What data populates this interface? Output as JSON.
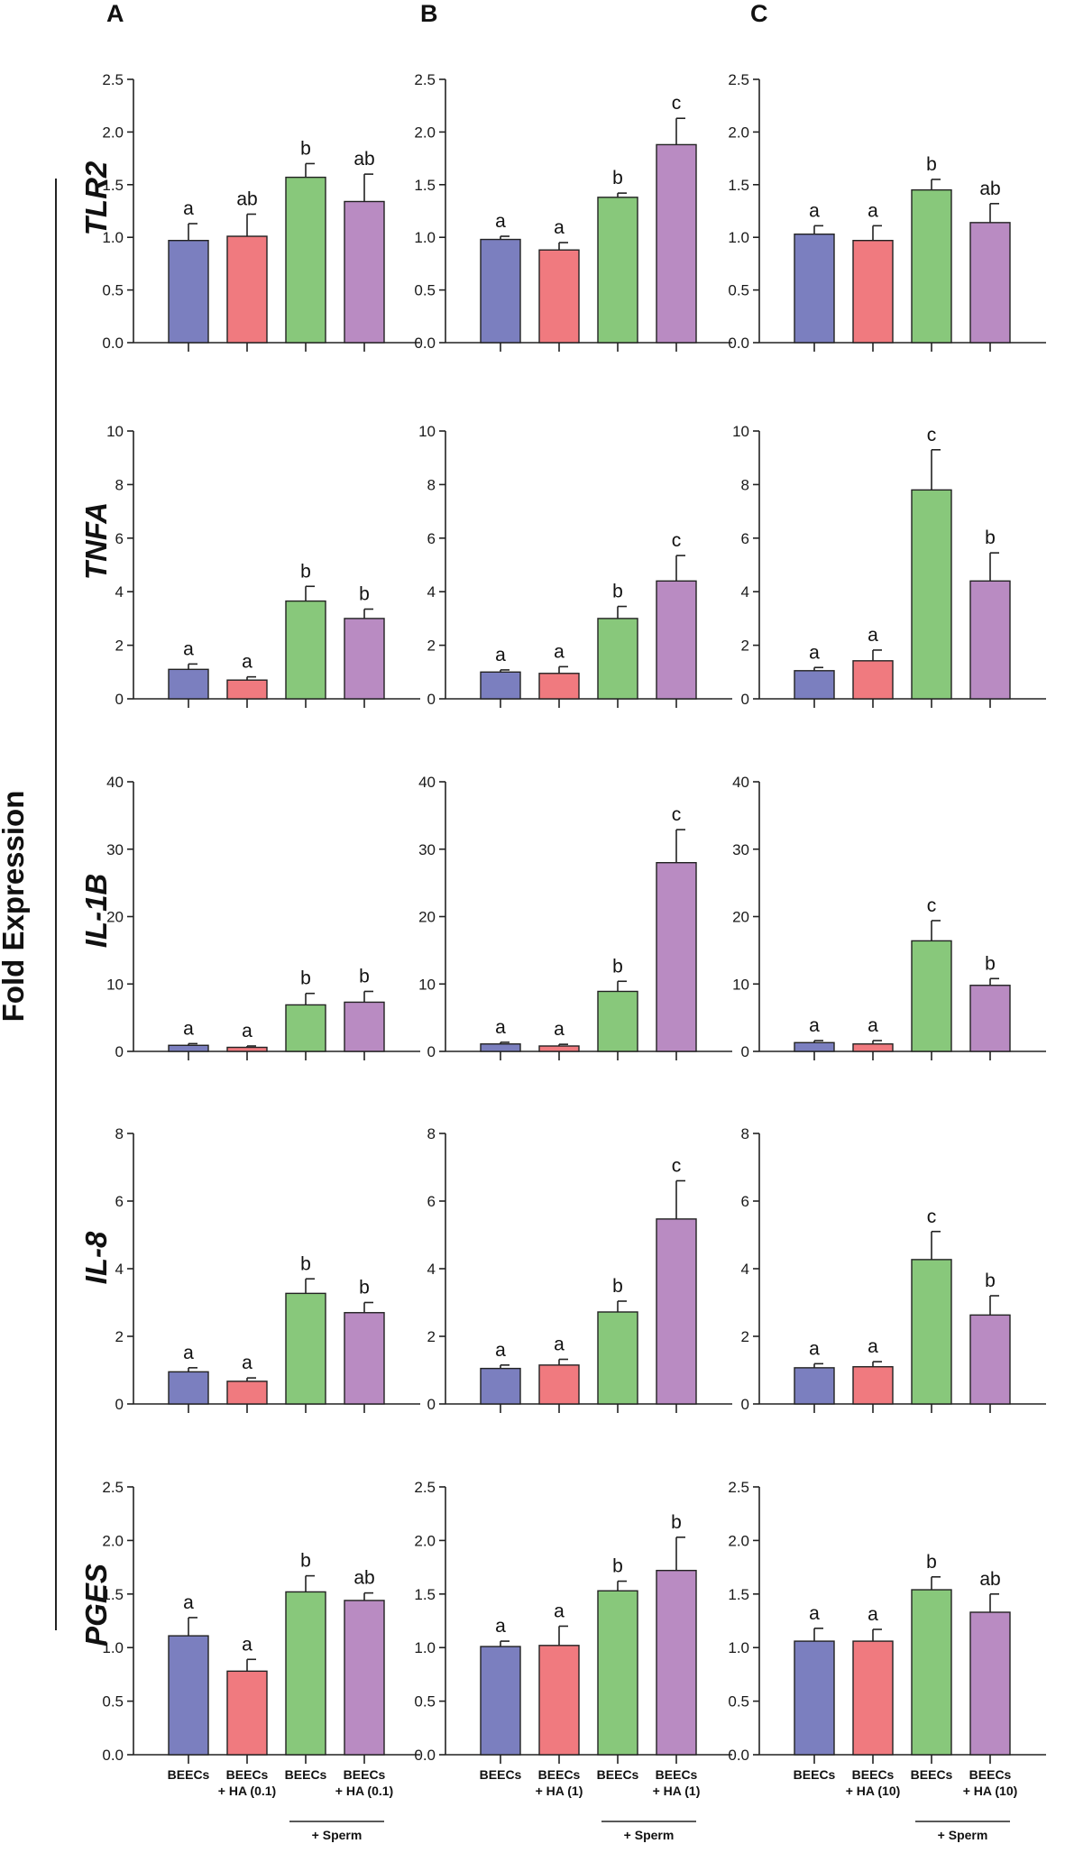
{
  "figure": {
    "y_axis_label": "Fold Expression",
    "panel_labels": [
      "A",
      "B",
      "C"
    ],
    "sperm_label": "+ Sperm",
    "x_label_lines": [
      [
        [
          "BEECs"
        ],
        [
          "BEECs",
          "+ HA (0.1)"
        ],
        [
          "BEECs"
        ],
        [
          "BEECs",
          "+ HA (0.1)"
        ]
      ],
      [
        [
          "BEECs"
        ],
        [
          "BEECs",
          "+ HA (1)"
        ],
        [
          "BEECs"
        ],
        [
          "BEECs",
          "+ HA (1)"
        ]
      ],
      [
        [
          "BEECs"
        ],
        [
          "BEECs",
          "+ HA (10)"
        ],
        [
          "BEECs"
        ],
        [
          "BEECs",
          "+ HA (10)"
        ]
      ]
    ],
    "bar_colors": [
      "#7b7fbf",
      "#f07a7f",
      "#88c87b",
      "#b98bc2"
    ]
  },
  "chart_data": [
    {
      "type": "bar",
      "gene": "TLR2",
      "ylim": [
        0,
        2.5
      ],
      "yticks": [
        "0.0",
        "0.5",
        "1.0",
        "1.5",
        "2.0",
        "2.5"
      ],
      "panels": [
        {
          "panel": "A",
          "categories": [
            "BEECs",
            "BEECs + HA (0.1)",
            "BEECs + Sperm",
            "BEECs + HA (0.1) + Sperm"
          ],
          "values": [
            0.97,
            1.01,
            1.57,
            1.34
          ],
          "errors": [
            0.16,
            0.21,
            0.13,
            0.26
          ],
          "letters": [
            "a",
            "ab",
            "b",
            "ab"
          ]
        },
        {
          "panel": "B",
          "categories": [
            "BEECs",
            "BEECs + HA (1)",
            "BEECs + Sperm",
            "BEECs + HA (1) + Sperm"
          ],
          "values": [
            0.98,
            0.88,
            1.38,
            1.88
          ],
          "errors": [
            0.03,
            0.07,
            0.04,
            0.25
          ],
          "letters": [
            "a",
            "a",
            "b",
            "c"
          ]
        },
        {
          "panel": "C",
          "categories": [
            "BEECs",
            "BEECs + HA (10)",
            "BEECs + Sperm",
            "BEECs + HA (10) + Sperm"
          ],
          "values": [
            1.03,
            0.97,
            1.45,
            1.14
          ],
          "errors": [
            0.08,
            0.14,
            0.1,
            0.18
          ],
          "letters": [
            "a",
            "a",
            "b",
            "ab"
          ]
        }
      ]
    },
    {
      "type": "bar",
      "gene": "TNFA",
      "ylim": [
        0,
        10
      ],
      "yticks": [
        "0",
        "2",
        "4",
        "6",
        "8",
        "10"
      ],
      "panels": [
        {
          "panel": "A",
          "categories": [
            "BEECs",
            "BEECs + HA (0.1)",
            "BEECs + Sperm",
            "BEECs + HA (0.1) + Sperm"
          ],
          "values": [
            1.1,
            0.7,
            3.65,
            3.0
          ],
          "errors": [
            0.2,
            0.12,
            0.55,
            0.35
          ],
          "letters": [
            "a",
            "a",
            "b",
            "b"
          ]
        },
        {
          "panel": "B",
          "categories": [
            "BEECs",
            "BEECs + HA (1)",
            "BEECs + Sperm",
            "BEECs + HA (1) + Sperm"
          ],
          "values": [
            1.0,
            0.95,
            3.0,
            4.4
          ],
          "errors": [
            0.08,
            0.25,
            0.45,
            0.95
          ],
          "letters": [
            "a",
            "a",
            "b",
            "c"
          ]
        },
        {
          "panel": "C",
          "categories": [
            "BEECs",
            "BEECs + HA (10)",
            "BEECs + Sperm",
            "BEECs + HA (10) + Sperm"
          ],
          "values": [
            1.05,
            1.42,
            7.8,
            4.4
          ],
          "errors": [
            0.12,
            0.4,
            1.5,
            1.05
          ],
          "letters": [
            "a",
            "a",
            "c",
            "b"
          ]
        }
      ]
    },
    {
      "type": "bar",
      "gene": "IL-1B",
      "ylim": [
        0,
        40
      ],
      "yticks": [
        "0",
        "10",
        "20",
        "30",
        "40"
      ],
      "panels": [
        {
          "panel": "A",
          "categories": [
            "BEECs",
            "BEECs + HA (0.1)",
            "BEECs + Sperm",
            "BEECs + HA (0.1) + Sperm"
          ],
          "values": [
            0.9,
            0.6,
            6.9,
            7.3
          ],
          "errors": [
            0.25,
            0.2,
            1.7,
            1.6
          ],
          "letters": [
            "a",
            "a",
            "b",
            "b"
          ]
        },
        {
          "panel": "B",
          "categories": [
            "BEECs",
            "BEECs + HA (1)",
            "BEECs + Sperm",
            "BEECs + HA (1) + Sperm"
          ],
          "values": [
            1.1,
            0.8,
            8.9,
            28.0
          ],
          "errors": [
            0.25,
            0.25,
            1.5,
            4.9
          ],
          "letters": [
            "a",
            "a",
            "b",
            "c"
          ]
        },
        {
          "panel": "C",
          "categories": [
            "BEECs",
            "BEECs + HA (10)",
            "BEECs + Sperm",
            "BEECs + HA (10) + Sperm"
          ],
          "values": [
            1.3,
            1.1,
            16.4,
            9.8
          ],
          "errors": [
            0.3,
            0.5,
            3.0,
            1.0
          ],
          "letters": [
            "a",
            "a",
            "c",
            "b"
          ]
        }
      ]
    },
    {
      "type": "bar",
      "gene": "IL-8",
      "ylim": [
        0,
        8
      ],
      "yticks": [
        "0",
        "2",
        "4",
        "6",
        "8"
      ],
      "panels": [
        {
          "panel": "A",
          "categories": [
            "BEECs",
            "BEECs + HA (0.1)",
            "BEECs + Sperm",
            "BEECs + HA (0.1) + Sperm"
          ],
          "values": [
            0.95,
            0.67,
            3.27,
            2.7
          ],
          "errors": [
            0.12,
            0.1,
            0.43,
            0.3
          ],
          "letters": [
            "a",
            "a",
            "b",
            "b"
          ]
        },
        {
          "panel": "B",
          "categories": [
            "BEECs",
            "BEECs + HA (1)",
            "BEECs + Sperm",
            "BEECs + HA (1) + Sperm"
          ],
          "values": [
            1.05,
            1.15,
            2.72,
            5.47
          ],
          "errors": [
            0.1,
            0.17,
            0.32,
            1.13
          ],
          "letters": [
            "a",
            "a",
            "b",
            "c"
          ]
        },
        {
          "panel": "C",
          "categories": [
            "BEECs",
            "BEECs + HA (10)",
            "BEECs + Sperm",
            "BEECs + HA (10) + Sperm"
          ],
          "values": [
            1.07,
            1.1,
            4.27,
            2.63
          ],
          "errors": [
            0.12,
            0.15,
            0.83,
            0.57
          ],
          "letters": [
            "a",
            "a",
            "c",
            "b"
          ]
        }
      ]
    },
    {
      "type": "bar",
      "gene": "PGES",
      "ylim": [
        0,
        2.5
      ],
      "yticks": [
        "0.0",
        "0.5",
        "1.0",
        "1.5",
        "2.0",
        "2.5"
      ],
      "panels": [
        {
          "panel": "A",
          "categories": [
            "BEECs",
            "BEECs + HA (0.1)",
            "BEECs + Sperm",
            "BEECs + HA (0.1) + Sperm"
          ],
          "values": [
            1.11,
            0.78,
            1.52,
            1.44
          ],
          "errors": [
            0.17,
            0.11,
            0.15,
            0.07
          ],
          "letters": [
            "a",
            "a",
            "b",
            "ab"
          ]
        },
        {
          "panel": "B",
          "categories": [
            "BEECs",
            "BEECs + HA (1)",
            "BEECs + Sperm",
            "BEECs + HA (1) + Sperm"
          ],
          "values": [
            1.01,
            1.02,
            1.53,
            1.72
          ],
          "errors": [
            0.05,
            0.18,
            0.09,
            0.31
          ],
          "letters": [
            "a",
            "a",
            "b",
            "b"
          ]
        },
        {
          "panel": "C",
          "categories": [
            "BEECs",
            "BEECs + HA (10)",
            "BEECs + Sperm",
            "BEECs + HA (10) + Sperm"
          ],
          "values": [
            1.06,
            1.06,
            1.54,
            1.33
          ],
          "errors": [
            0.12,
            0.11,
            0.12,
            0.17
          ],
          "letters": [
            "a",
            "a",
            "b",
            "ab"
          ]
        }
      ]
    }
  ]
}
